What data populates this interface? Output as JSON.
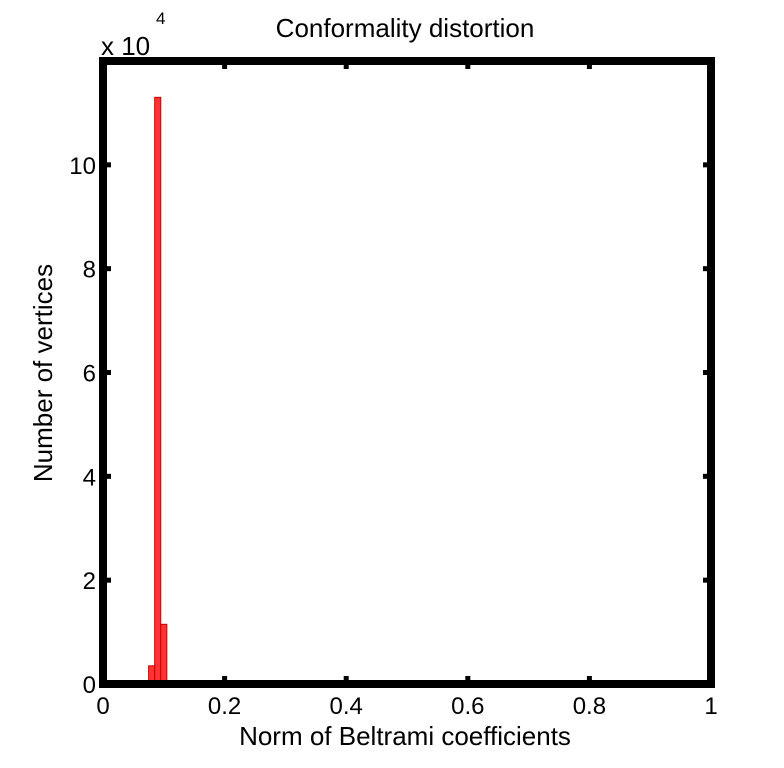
{
  "chart_data": {
    "type": "bar",
    "title": "Conformality distortion",
    "xlabel": "Norm of Beltrami coefficients",
    "ylabel": "Number of vertices",
    "y_multiplier": "x 10",
    "y_multiplier_exponent": "4",
    "xlim": [
      0,
      1
    ],
    "ylim": [
      0,
      120000
    ],
    "xticks": [
      0,
      0.2,
      0.4,
      0.6,
      0.8,
      1
    ],
    "xtick_labels": [
      "0",
      "0.2",
      "0.4",
      "0.6",
      "0.8",
      "1"
    ],
    "yticks": [
      0,
      20000,
      40000,
      60000,
      80000,
      100000
    ],
    "ytick_labels": [
      "0",
      "2",
      "4",
      "6",
      "8",
      "10"
    ],
    "bin_width": 0.01,
    "series": [
      {
        "values": [
          {
            "x": 0.08,
            "y": 3500
          },
          {
            "x": 0.09,
            "y": 113000
          },
          {
            "x": 0.1,
            "y": 11500
          }
        ]
      }
    ],
    "bar_color": "#ff3333",
    "bar_edge_color": "#cc0000",
    "grid": false,
    "box": true
  }
}
